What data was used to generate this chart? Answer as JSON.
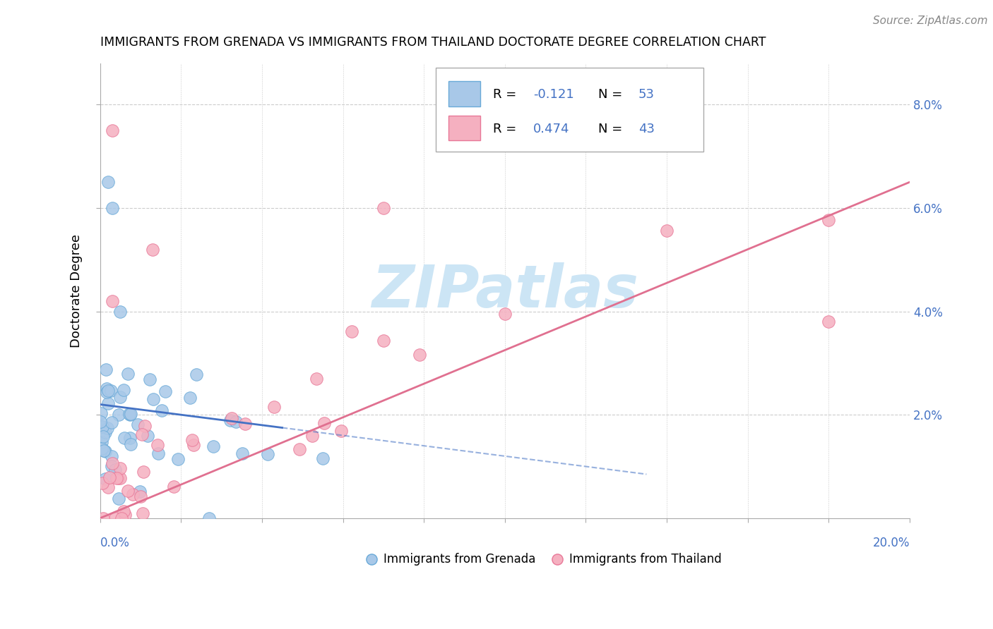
{
  "title": "IMMIGRANTS FROM GRENADA VS IMMIGRANTS FROM THAILAND DOCTORATE DEGREE CORRELATION CHART",
  "source": "Source: ZipAtlas.com",
  "ylabel": "Doctorate Degree",
  "xlim": [
    0.0,
    0.2
  ],
  "ylim": [
    0.0,
    0.088
  ],
  "ytick_vals": [
    0.02,
    0.04,
    0.06,
    0.08
  ],
  "ytick_labels": [
    "2.0%",
    "4.0%",
    "6.0%",
    "8.0%"
  ],
  "grenada_color": "#a8c8e8",
  "thailand_color": "#f5b0c0",
  "grenada_edge": "#6aaad8",
  "thailand_edge": "#e87898",
  "grenada_line_color": "#4472c4",
  "thailand_line_color": "#e07090",
  "watermark_color": "#cce5f5",
  "label_color": "#4472c4",
  "legend_r_color": "#4472c4",
  "legend_n_color": "#4472c4"
}
